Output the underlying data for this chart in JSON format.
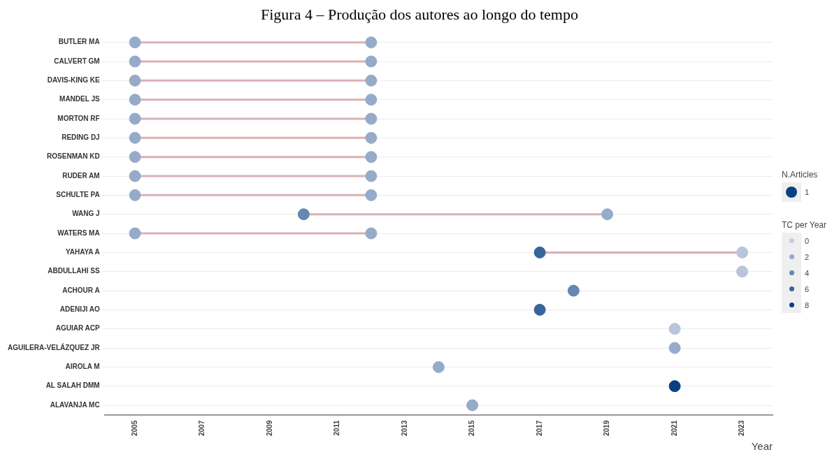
{
  "chart_data": {
    "type": "scatter",
    "orientation": "horizontal",
    "title": "Figura 4 – Produção dos autores ao longo do tempo",
    "xlabel": "Year",
    "categories": [
      "BUTLER MA",
      "CALVERT GM",
      "DAVIS-KING KE",
      "MANDEL JS",
      "MORTON RF",
      "REDING DJ",
      "ROSENMAN KD",
      "RUDER AM",
      "SCHULTE PA",
      "WANG J",
      "WATERS MA",
      "YAHAYA A",
      "ABDULLAHI SS",
      "ACHOUR A",
      "ADENIJI AO",
      "AGUIAR ACP",
      "AGUILERA-VELÁZQUEZ JR",
      "AIROLA M",
      "AL SALAH DMM",
      "ALAVANJA MC"
    ],
    "xlim": [
      2004.1,
      2023.9
    ],
    "xticks": [
      2005,
      2007,
      2009,
      2011,
      2013,
      2015,
      2017,
      2019,
      2021,
      2023
    ],
    "grid": "y",
    "series": [
      {
        "values": [
          2005,
          2005,
          2005,
          2005,
          2005,
          2005,
          2005,
          2005,
          2005,
          2010,
          2005,
          2017,
          2023,
          2018,
          2017,
          2021,
          2021,
          2014,
          2021,
          2015
        ],
        "cvalues": [
          2,
          2,
          2,
          2,
          2,
          2,
          2,
          2,
          2,
          4,
          2,
          6,
          0.5,
          4,
          6,
          0.5,
          2,
          2,
          8,
          2
        ],
        "colors": [
          "#95abc9",
          "#95abc9",
          "#95abc9",
          "#95abc9",
          "#95abc9",
          "#95abc9",
          "#95abc9",
          "#95abc9",
          "#95abc9",
          "#6687b2",
          "#95abc9",
          "#37649b",
          "#b8c5da",
          "#6687b2",
          "#37649b",
          "#b8c5da",
          "#95abc9",
          "#95abc9",
          "#084084",
          "#95abc9"
        ],
        "sizes": [
          1,
          1,
          1,
          1,
          1,
          1,
          1,
          1,
          1,
          1,
          1,
          1,
          1,
          1,
          1,
          1,
          1,
          1,
          1,
          1
        ]
      },
      {
        "values": [
          2012,
          2012,
          2012,
          2012,
          2012,
          2012,
          2012,
          2012,
          2012,
          2019,
          2012,
          2023,
          null,
          null,
          null,
          null,
          null,
          null,
          null,
          null
        ],
        "cvalues": [
          2,
          2,
          2,
          2,
          2,
          2,
          2,
          2,
          2,
          2,
          2,
          0.5,
          null,
          null,
          null,
          null,
          null,
          null,
          null,
          null
        ],
        "colors": [
          "#95abc9",
          "#95abc9",
          "#95abc9",
          "#95abc9",
          "#95abc9",
          "#95abc9",
          "#95abc9",
          "#95abc9",
          "#95abc9",
          "#95abc9",
          "#95abc9",
          "#b8c5da",
          null,
          null,
          null,
          null,
          null,
          null,
          null,
          null
        ],
        "sizes": [
          1,
          1,
          1,
          1,
          1,
          1,
          1,
          1,
          1,
          1,
          1,
          1,
          null,
          null,
          null,
          null,
          null,
          null,
          null,
          null
        ]
      }
    ],
    "legend_title": "N.Articles",
    "size_legend": [
      1
    ],
    "clabel": "TC per Year",
    "clim": [
      0,
      8
    ],
    "cticks": [
      0,
      2,
      4,
      6,
      8
    ]
  }
}
